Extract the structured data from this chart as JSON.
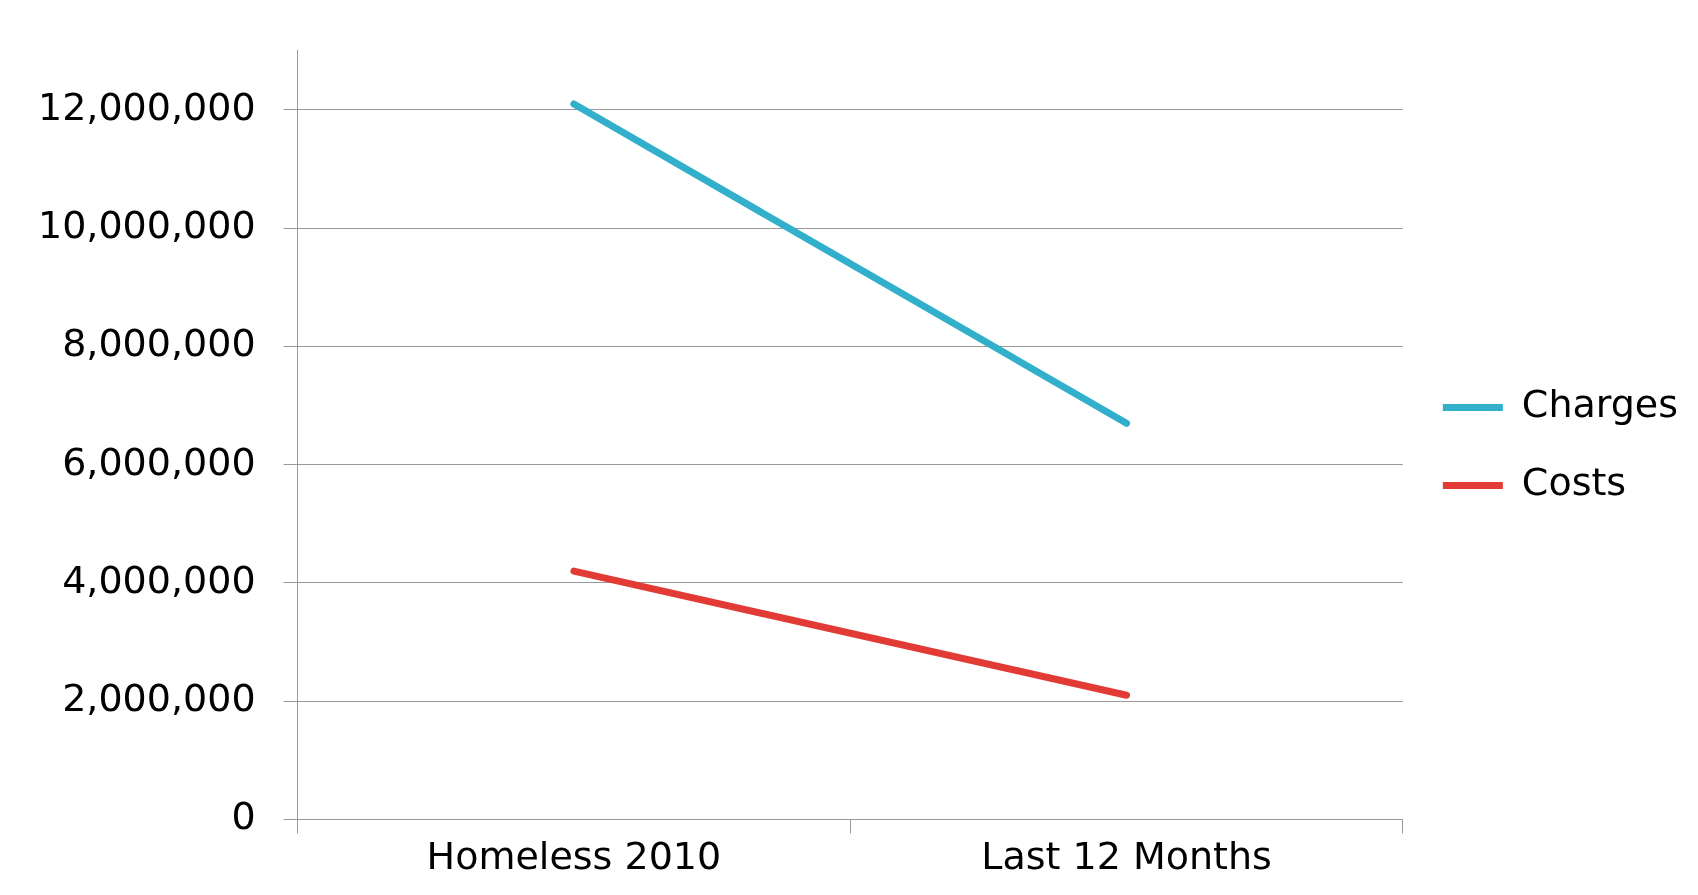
{
  "chart_data": {
    "type": "line",
    "categories": [
      "Homeless 2010",
      "Last 12 Months"
    ],
    "series": [
      {
        "name": "Charges",
        "color": "#32b0cb",
        "values": [
          12100000,
          6700000
        ]
      },
      {
        "name": "Costs",
        "color": "#e23b36",
        "values": [
          4200000,
          2100000
        ]
      }
    ],
    "ylim": [
      0,
      13000000
    ],
    "yticks": [
      0,
      {
        "value": 2000000,
        "label": "2,000,000"
      },
      {
        "value": 4000000,
        "label": "4,000,000"
      },
      {
        "value": 6000000,
        "label": "6,000,000"
      },
      {
        "value": 8000000,
        "label": "8,000,000"
      },
      {
        "value": 10000000,
        "label": "10,000,000"
      },
      {
        "value": 12000000,
        "label": "12,000,000"
      }
    ],
    "grid": "y",
    "legend": "right",
    "marker": "none",
    "line_style": "solid"
  }
}
